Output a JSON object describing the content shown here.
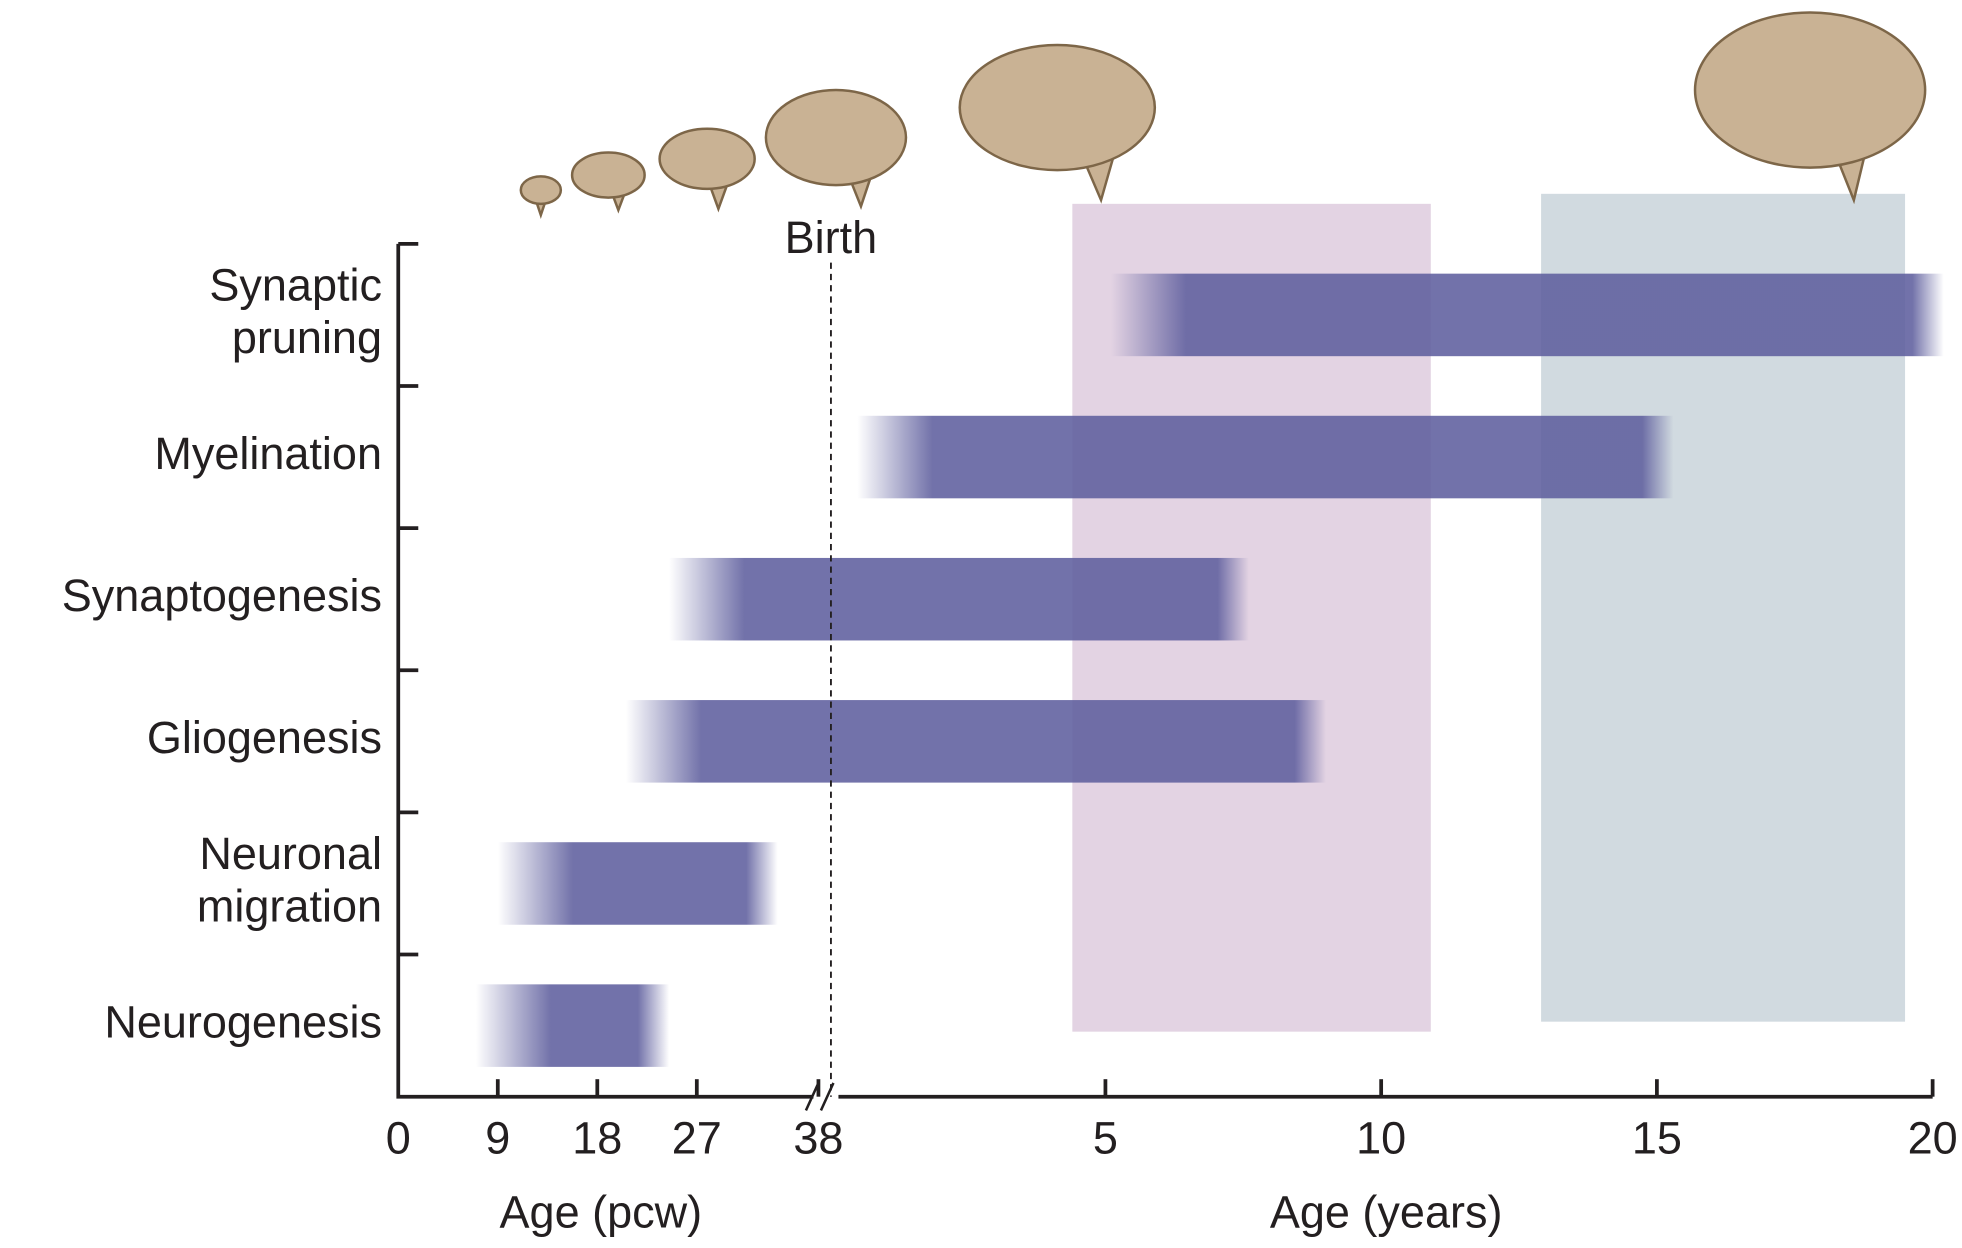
{
  "chart_data": {
    "type": "timeline",
    "annotation": "Birth",
    "pcw_axis": {
      "label": "Age (pcw)",
      "xlim": [
        0,
        38
      ],
      "xticks": [
        0,
        9,
        18,
        27,
        38
      ]
    },
    "years_axis": {
      "label": "Age (years)",
      "xlim": [
        0,
        20
      ],
      "xticks": [
        5,
        10,
        15,
        20
      ]
    },
    "bar_color": "#5f5f9e",
    "bars": [
      {
        "label": [
          "Synaptic",
          "pruning"
        ],
        "start_pcw": null,
        "start_years": 5.1,
        "end_pcw": null,
        "end_years": 20.2
      },
      {
        "label": [
          "Myelination"
        ],
        "start_pcw": null,
        "start_years": 0.5,
        "end_pcw": null,
        "end_years": 15.3
      },
      {
        "label": [
          "Synaptogenesis"
        ],
        "start_pcw": 24.5,
        "start_years": null,
        "end_pcw": null,
        "end_years": 7.6
      },
      {
        "label": [
          "Gliogenesis"
        ],
        "start_pcw": 20.6,
        "start_years": null,
        "end_pcw": null,
        "end_years": 9.0
      },
      {
        "label": [
          "Neuronal",
          "migration"
        ],
        "start_pcw": 9,
        "start_years": null,
        "end_pcw": 34.3,
        "end_years": null
      },
      {
        "label": [
          "Neurogenesis"
        ],
        "start_pcw": 7,
        "start_years": null,
        "end_pcw": 24.5,
        "end_years": null
      }
    ],
    "periods": [
      {
        "start_years": 4.4,
        "end_years": 10.9,
        "color": "#e3d3e3"
      },
      {
        "start_years": 12.9,
        "end_years": 19.5,
        "color": "#d1dae0"
      }
    ]
  }
}
